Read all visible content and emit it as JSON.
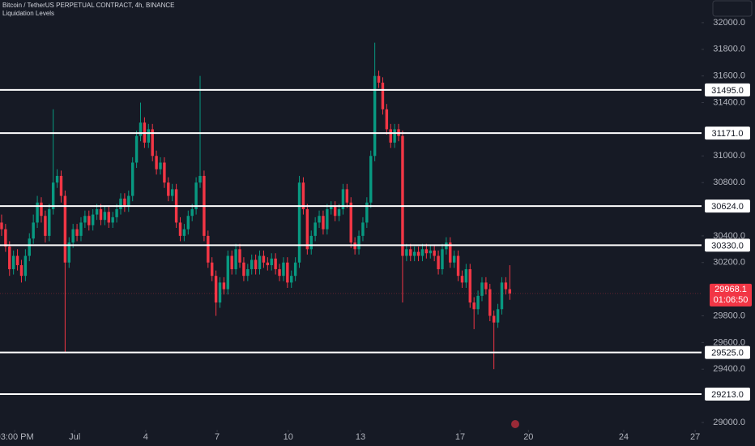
{
  "chart_data": {
    "type": "candlestick",
    "title": "Bitcoin / TetherUS PERPETUAL CONTRACT, 4h, BINANCE",
    "subtitle": "Liquidation Levels",
    "up_color": "#089981",
    "down_color": "#f23645",
    "ylim": [
      28945,
      32170
    ],
    "yticks": [
      {
        "value": 32000,
        "label": "32000.0"
      },
      {
        "value": 31800,
        "label": "31800.0"
      },
      {
        "value": 31600,
        "label": "31600.0"
      },
      {
        "value": 31400,
        "label": "31400.0"
      },
      {
        "value": 31000,
        "label": "31000.0"
      },
      {
        "value": 30800,
        "label": "30800.0"
      },
      {
        "value": 30400,
        "label": "30400.0"
      },
      {
        "value": 30200,
        "label": "30200.0"
      },
      {
        "value": 29800,
        "label": "29800.0"
      },
      {
        "value": 29600,
        "label": "29600.0"
      },
      {
        "value": 29400,
        "label": "29400.0"
      },
      {
        "value": 29000,
        "label": "29000.0"
      }
    ],
    "xlim": [
      -0.4,
      176.3
    ],
    "xticks": [
      {
        "value": 3.3,
        "label": "03:00 PM"
      },
      {
        "value": 18.4,
        "label": "Jul"
      },
      {
        "value": 36.3,
        "label": "4"
      },
      {
        "value": 54.3,
        "label": "7"
      },
      {
        "value": 72.2,
        "label": "10"
      },
      {
        "value": 90.4,
        "label": "13"
      },
      {
        "value": 115.5,
        "label": "17"
      },
      {
        "value": 132.7,
        "label": "20"
      },
      {
        "value": 156.7,
        "label": "24"
      },
      {
        "value": 174.7,
        "label": "27"
      }
    ],
    "levels": [
      {
        "value": 31495,
        "label": "31495.0"
      },
      {
        "value": 31171,
        "label": "31171.0"
      },
      {
        "value": 30624,
        "label": "30624.0"
      },
      {
        "value": 30330,
        "label": "30330.0"
      },
      {
        "value": 29525,
        "label": "29525.0"
      },
      {
        "value": 29213,
        "label": "29213.0"
      }
    ],
    "level_color": "#ffffff",
    "last_price": 29968.1,
    "countdown": "01:06:50",
    "candles": [
      [
        30500,
        30560,
        30400,
        30450
      ],
      [
        30450,
        30490,
        30280,
        30320
      ],
      [
        30320,
        30360,
        30100,
        30150
      ],
      [
        30150,
        30290,
        30110,
        30250
      ],
      [
        30250,
        30300,
        30140,
        30180
      ],
      [
        30180,
        30220,
        30050,
        30100
      ],
      [
        30100,
        30300,
        30060,
        30250
      ],
      [
        30250,
        30420,
        30210,
        30380
      ],
      [
        30380,
        30560,
        30340,
        30500
      ],
      [
        30500,
        30700,
        30460,
        30650
      ],
      [
        30650,
        30690,
        30500,
        30550
      ],
      [
        30550,
        30590,
        30350,
        30400
      ],
      [
        30400,
        30640,
        30360,
        30600
      ],
      [
        30600,
        31350,
        30560,
        30800
      ],
      [
        30800,
        30900,
        30760,
        30850
      ],
      [
        30850,
        30890,
        30650,
        30700
      ],
      [
        30700,
        30740,
        29520,
        30200
      ],
      [
        30200,
        30390,
        30160,
        30350
      ],
      [
        30350,
        30490,
        30310,
        30450
      ],
      [
        30450,
        30490,
        30360,
        30400
      ],
      [
        30400,
        30540,
        30360,
        30500
      ],
      [
        30500,
        30590,
        30460,
        30550
      ],
      [
        30550,
        30590,
        30440,
        30480
      ],
      [
        30480,
        30600,
        30440,
        30560
      ],
      [
        30560,
        30640,
        30520,
        30600
      ],
      [
        30600,
        30640,
        30480,
        30520
      ],
      [
        30520,
        30620,
        30480,
        30580
      ],
      [
        30580,
        30620,
        30460,
        30500
      ],
      [
        30500,
        30580,
        30460,
        30540
      ],
      [
        30540,
        30640,
        30500,
        30600
      ],
      [
        30600,
        30720,
        30560,
        30680
      ],
      [
        30680,
        30720,
        30580,
        30620
      ],
      [
        30620,
        30740,
        30580,
        30700
      ],
      [
        30700,
        30990,
        30660,
        30950
      ],
      [
        30950,
        31190,
        30910,
        31150
      ],
      [
        31150,
        31400,
        31110,
        31250
      ],
      [
        31250,
        31290,
        31060,
        31100
      ],
      [
        31100,
        31240,
        31060,
        31200
      ],
      [
        31200,
        31240,
        30960,
        31000
      ],
      [
        31000,
        31040,
        30860,
        30900
      ],
      [
        30900,
        30990,
        30860,
        30950
      ],
      [
        30950,
        30990,
        30760,
        30800
      ],
      [
        30800,
        30840,
        30660,
        30700
      ],
      [
        30700,
        30790,
        30660,
        30750
      ],
      [
        30750,
        30790,
        30460,
        30500
      ],
      [
        30500,
        30540,
        30360,
        30400
      ],
      [
        30400,
        30490,
        30360,
        30450
      ],
      [
        30450,
        30590,
        30410,
        30550
      ],
      [
        30550,
        30640,
        30510,
        30600
      ],
      [
        30600,
        30840,
        30560,
        30800
      ],
      [
        30800,
        31600,
        30760,
        30850
      ],
      [
        30850,
        30890,
        30360,
        30400
      ],
      [
        30400,
        30440,
        30160,
        30200
      ],
      [
        30200,
        30240,
        30060,
        30100
      ],
      [
        30100,
        30140,
        29800,
        29900
      ],
      [
        29900,
        30090,
        29860,
        30050
      ],
      [
        30050,
        30090,
        29960,
        30000
      ],
      [
        30000,
        30290,
        29960,
        30250
      ],
      [
        30250,
        30290,
        30110,
        30150
      ],
      [
        30150,
        30340,
        30110,
        30300
      ],
      [
        30300,
        30340,
        30160,
        30200
      ],
      [
        30200,
        30240,
        30060,
        30100
      ],
      [
        30100,
        30190,
        30060,
        30150
      ],
      [
        30150,
        30260,
        30110,
        30220
      ],
      [
        30220,
        30260,
        30110,
        30150
      ],
      [
        30150,
        30290,
        30110,
        30250
      ],
      [
        30250,
        30290,
        30160,
        30200
      ],
      [
        30200,
        30240,
        30140,
        30180
      ],
      [
        30180,
        30270,
        30140,
        30230
      ],
      [
        30230,
        30270,
        30110,
        30150
      ],
      [
        30150,
        30190,
        30060,
        30100
      ],
      [
        30100,
        30240,
        30060,
        30200
      ],
      [
        30200,
        30240,
        30010,
        30050
      ],
      [
        30050,
        30140,
        30010,
        30100
      ],
      [
        30100,
        30240,
        30060,
        30200
      ],
      [
        30200,
        30850,
        30160,
        30800
      ],
      [
        30800,
        30840,
        30560,
        30600
      ],
      [
        30600,
        30640,
        30260,
        30300
      ],
      [
        30300,
        30440,
        30260,
        30400
      ],
      [
        30400,
        30540,
        30360,
        30500
      ],
      [
        30500,
        30590,
        30460,
        30550
      ],
      [
        30550,
        30590,
        30410,
        30450
      ],
      [
        30450,
        30640,
        30410,
        30600
      ],
      [
        30600,
        30660,
        30560,
        30620
      ],
      [
        30620,
        30660,
        30510,
        30550
      ],
      [
        30550,
        30640,
        30510,
        30600
      ],
      [
        30600,
        30790,
        30560,
        30750
      ],
      [
        30750,
        30790,
        30610,
        30650
      ],
      [
        30650,
        30690,
        30310,
        30350
      ],
      [
        30350,
        30390,
        30260,
        30300
      ],
      [
        30300,
        30440,
        30260,
        30400
      ],
      [
        30400,
        30540,
        30360,
        30500
      ],
      [
        30500,
        30690,
        30460,
        30650
      ],
      [
        30650,
        31040,
        30610,
        31000
      ],
      [
        31000,
        31850,
        30960,
        31600
      ],
      [
        31600,
        31640,
        31510,
        31550
      ],
      [
        31550,
        31590,
        31310,
        31350
      ],
      [
        31350,
        31390,
        31160,
        31200
      ],
      [
        31200,
        31240,
        31060,
        31100
      ],
      [
        31100,
        31240,
        31060,
        31200
      ],
      [
        31200,
        31240,
        31110,
        31150
      ],
      [
        31150,
        31190,
        29900,
        30250
      ],
      [
        30250,
        30340,
        30210,
        30300
      ],
      [
        30300,
        30340,
        30210,
        30250
      ],
      [
        30250,
        30320,
        30210,
        30280
      ],
      [
        30280,
        30320,
        30210,
        30250
      ],
      [
        30250,
        30340,
        30210,
        30300
      ],
      [
        30300,
        30340,
        30230,
        30270
      ],
      [
        30270,
        30330,
        30230,
        30290
      ],
      [
        30290,
        30330,
        30210,
        30250
      ],
      [
        30250,
        30290,
        30110,
        30150
      ],
      [
        30150,
        30340,
        30110,
        30300
      ],
      [
        30300,
        30390,
        30260,
        30350
      ],
      [
        30350,
        30390,
        30160,
        30200
      ],
      [
        30200,
        30290,
        30160,
        30250
      ],
      [
        30250,
        30290,
        30060,
        30100
      ],
      [
        30100,
        30140,
        30010,
        30050
      ],
      [
        30050,
        30190,
        30010,
        30150
      ],
      [
        30150,
        30190,
        29860,
        29900
      ],
      [
        29900,
        29940,
        29700,
        29850
      ],
      [
        29850,
        29990,
        29810,
        29950
      ],
      [
        29950,
        30090,
        29910,
        30050
      ],
      [
        30050,
        30090,
        29960,
        30000
      ],
      [
        30000,
        30040,
        29760,
        29800
      ],
      [
        29800,
        29840,
        29400,
        29750
      ],
      [
        29750,
        29890,
        29710,
        29850
      ],
      [
        29850,
        30090,
        29810,
        30050
      ],
      [
        30050,
        30090,
        29960,
        30000
      ],
      [
        30000,
        30180,
        29920,
        29968.1
      ]
    ]
  }
}
